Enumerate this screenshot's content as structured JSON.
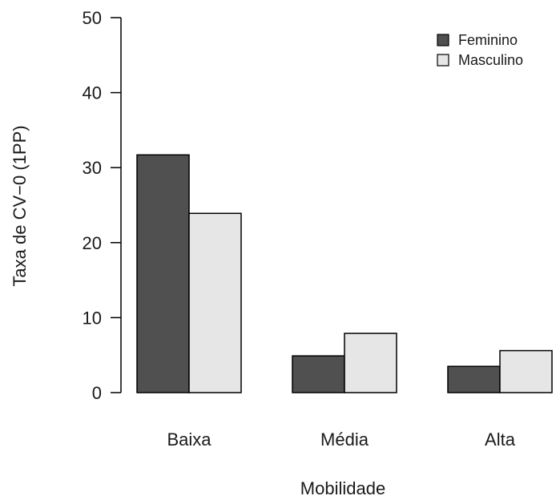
{
  "chart_data": {
    "type": "bar",
    "title": "",
    "xlabel": "Mobilidade",
    "ylabel": "Taxa de CV−0 (1PP)",
    "categories": [
      "Baixa",
      "Média",
      "Alta"
    ],
    "series": [
      {
        "name": "Feminino",
        "values": [
          31.7,
          4.9,
          3.5
        ],
        "color": "#505050"
      },
      {
        "name": "Masculino",
        "values": [
          23.9,
          7.9,
          5.6
        ],
        "color": "#e6e6e6"
      }
    ],
    "ylim": [
      0,
      50
    ],
    "yticks": [
      0,
      10,
      20,
      30,
      40,
      50
    ],
    "grid": false,
    "legend_position": "top-right"
  }
}
